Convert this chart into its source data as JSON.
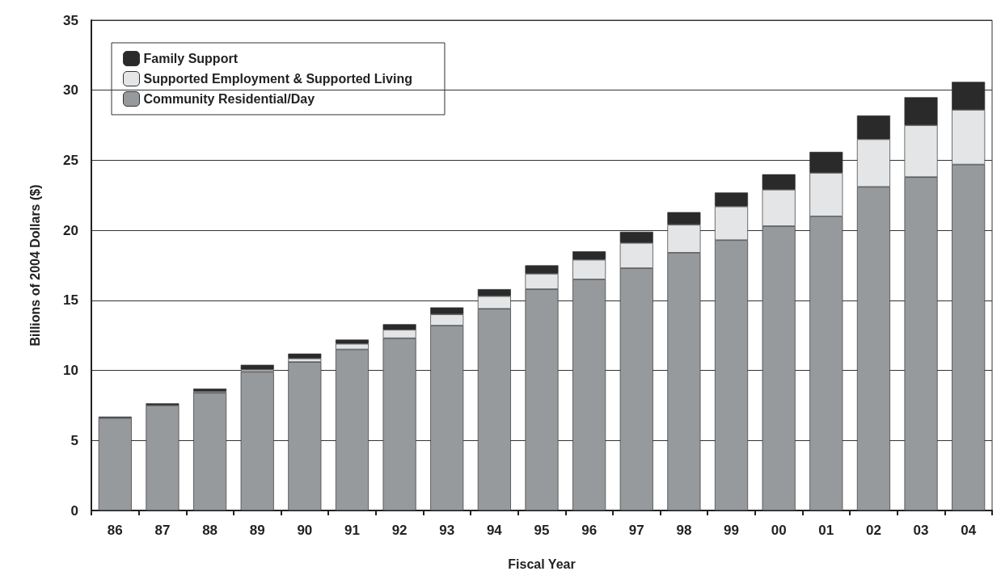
{
  "chart_data": {
    "type": "bar",
    "stacked": true,
    "xlabel": "Fiscal Year",
    "ylabel": "Billions of 2004 Dollars ($)",
    "categories": [
      "86",
      "87",
      "88",
      "89",
      "90",
      "91",
      "92",
      "93",
      "94",
      "95",
      "96",
      "97",
      "98",
      "99",
      "00",
      "01",
      "02",
      "03",
      "04"
    ],
    "series": [
      {
        "name": "Community Residential/Day",
        "color": "#979a9d",
        "values": [
          6.6,
          7.5,
          8.4,
          9.9,
          10.6,
          11.5,
          12.3,
          13.2,
          14.4,
          15.8,
          16.5,
          17.3,
          18.4,
          19.3,
          20.3,
          21.0,
          23.1,
          23.8,
          24.7
        ]
      },
      {
        "name": "Supported Employment & Supported Living",
        "color": "#e4e5e7",
        "values": [
          null,
          null,
          0.1,
          0.15,
          0.25,
          0.4,
          0.6,
          0.8,
          0.9,
          1.1,
          1.4,
          1.8,
          2.0,
          2.4,
          2.6,
          3.1,
          3.4,
          3.7,
          3.9
        ]
      },
      {
        "name": "Family Support",
        "color": "#2a2a2a",
        "values": [
          0.1,
          0.15,
          0.2,
          0.35,
          0.35,
          0.3,
          0.4,
          0.5,
          0.5,
          0.6,
          0.6,
          0.8,
          0.9,
          1.0,
          1.1,
          1.5,
          1.7,
          2.0,
          2.0
        ]
      }
    ],
    "ylim": [
      0,
      35
    ],
    "yticks": [
      0,
      5,
      10,
      15,
      20,
      25,
      30,
      35
    ],
    "grid": "y",
    "legend": "top left"
  }
}
